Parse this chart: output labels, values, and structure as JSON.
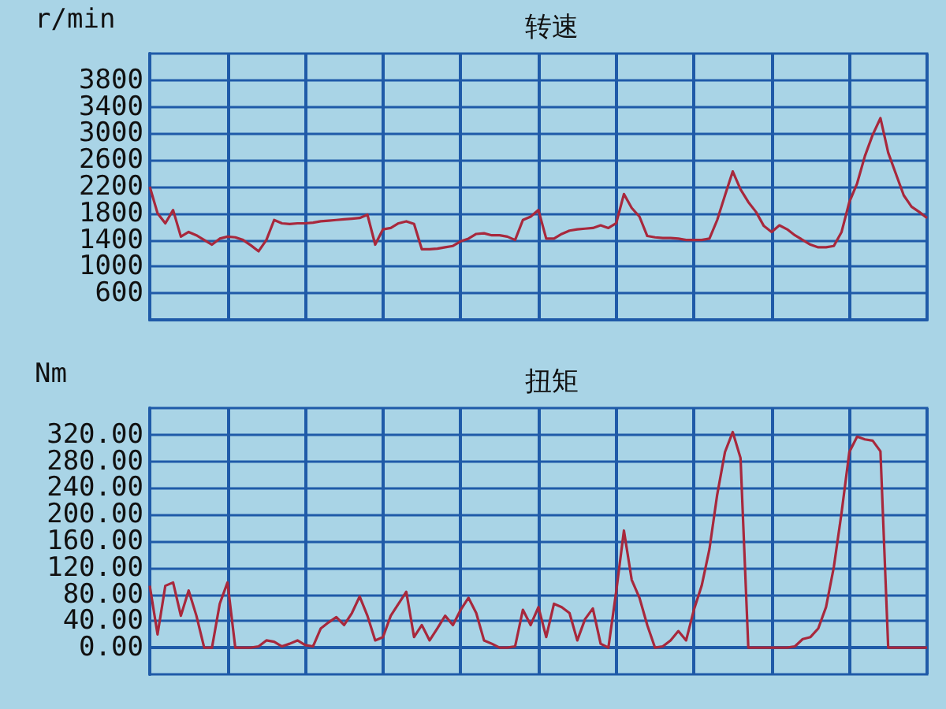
{
  "chart_data": [
    {
      "type": "line",
      "title": "转速",
      "ylabel": "r/min",
      "categories": [
        null,
        null,
        null,
        null,
        null,
        null,
        null,
        null,
        null,
        null,
        null,
        null,
        null,
        null,
        null,
        null,
        null,
        null,
        null,
        null,
        null,
        null,
        null,
        null,
        null,
        null,
        null,
        null,
        null,
        null,
        null,
        null,
        null,
        null,
        null,
        null,
        null,
        null,
        null,
        null,
        null,
        null,
        null,
        null,
        null,
        null,
        null,
        null,
        null,
        null,
        null,
        null,
        null,
        null,
        null,
        null,
        null,
        null,
        null,
        null,
        null,
        null,
        null,
        null,
        null,
        null,
        null,
        null,
        null,
        null,
        null,
        null,
        null,
        null,
        null,
        null,
        null,
        null,
        null,
        null,
        null,
        null,
        null,
        null,
        null,
        null,
        null,
        null,
        null,
        null,
        null,
        null,
        null,
        null,
        null,
        null,
        null,
        null,
        null,
        null,
        null
      ],
      "series": [
        {
          "color": "#a8283c",
          "values": [
            2200,
            1800,
            1650,
            1850,
            1450,
            1520,
            1470,
            1400,
            1330,
            1420,
            1450,
            1440,
            1400,
            1320,
            1230,
            1400,
            1700,
            1650,
            1640,
            1650,
            1650,
            1660,
            1680,
            1690,
            1700,
            1710,
            1720,
            1730,
            1780,
            1330,
            1560,
            1580,
            1650,
            1680,
            1640,
            1260,
            1260,
            1270,
            1290,
            1310,
            1380,
            1420,
            1490,
            1500,
            1470,
            1470,
            1450,
            1400,
            1700,
            1750,
            1850,
            1420,
            1420,
            1490,
            1540,
            1560,
            1570,
            1580,
            1620,
            1580,
            1650,
            2090,
            1880,
            1750,
            1460,
            1440,
            1430,
            1430,
            1420,
            1400,
            1400,
            1400,
            1420,
            1700,
            2070,
            2430,
            2160,
            1970,
            1820,
            1610,
            1520,
            1620,
            1560,
            1470,
            1400,
            1330,
            1290,
            1290,
            1310,
            1520,
            1970,
            2250,
            2660,
            2980,
            3230,
            2710,
            2390,
            2070,
            1900,
            1820,
            1730
          ]
        }
      ],
      "ylim": [
        200,
        4200
      ],
      "yticks": [
        600,
        1000,
        1400,
        1800,
        2200,
        2600,
        3000,
        3400,
        3800
      ],
      "grid": true,
      "tick_labels": "y"
    },
    {
      "type": "line",
      "title": "扭矩",
      "ylabel": "Nm",
      "categories": [
        null,
        null,
        null,
        null,
        null,
        null,
        null,
        null,
        null,
        null,
        null,
        null,
        null,
        null,
        null,
        null,
        null,
        null,
        null,
        null,
        null,
        null,
        null,
        null,
        null,
        null,
        null,
        null,
        null,
        null,
        null,
        null,
        null,
        null,
        null,
        null,
        null,
        null,
        null,
        null,
        null,
        null,
        null,
        null,
        null,
        null,
        null,
        null,
        null,
        null,
        null,
        null,
        null,
        null,
        null,
        null,
        null,
        null,
        null,
        null,
        null,
        null,
        null,
        null,
        null,
        null,
        null,
        null,
        null,
        null,
        null,
        null,
        null,
        null,
        null,
        null,
        null,
        null,
        null,
        null,
        null,
        null,
        null,
        null,
        null,
        null,
        null,
        null,
        null,
        null,
        null,
        null,
        null,
        null,
        null,
        null,
        null,
        null,
        null,
        null,
        null
      ],
      "series": [
        {
          "color": "#a8283c",
          "values": [
            93,
            20,
            93,
            98,
            48,
            86,
            48,
            0,
            0,
            66,
            98,
            0,
            0,
            0,
            2,
            11,
            9,
            2,
            6,
            11,
            4,
            2,
            29,
            38,
            46,
            34,
            52,
            77,
            48,
            11,
            16,
            48,
            66,
            84,
            16,
            34,
            11,
            29,
            48,
            34,
            57,
            75,
            52,
            11,
            6,
            0,
            0,
            2,
            57,
            34,
            61,
            16,
            66,
            61,
            52,
            11,
            43,
            59,
            6,
            0,
            84,
            176,
            102,
            75,
            34,
            0,
            2,
            11,
            25,
            11,
            57,
            93,
            148,
            230,
            294,
            324,
            285,
            0,
            0,
            0,
            0,
            0,
            0,
            2,
            13,
            16,
            29,
            61,
            121,
            203,
            294,
            317,
            313,
            311,
            295,
            0,
            0,
            0,
            0,
            0,
            0
          ]
        }
      ],
      "ylim": [
        -40,
        360
      ],
      "yticks": [
        {
          "value": 0,
          "label": "0.00"
        },
        {
          "value": 40,
          "label": "40.00"
        },
        {
          "value": 80,
          "label": "80.00"
        },
        {
          "value": 120,
          "label": "120.00"
        },
        {
          "value": 160,
          "label": "160.00"
        },
        {
          "value": 200,
          "label": "200.00"
        },
        {
          "value": 240,
          "label": "240.00"
        },
        {
          "value": 280,
          "label": "280.00"
        },
        {
          "value": 320,
          "label": "320.00"
        }
      ],
      "grid": true,
      "tick_labels": "y"
    }
  ]
}
